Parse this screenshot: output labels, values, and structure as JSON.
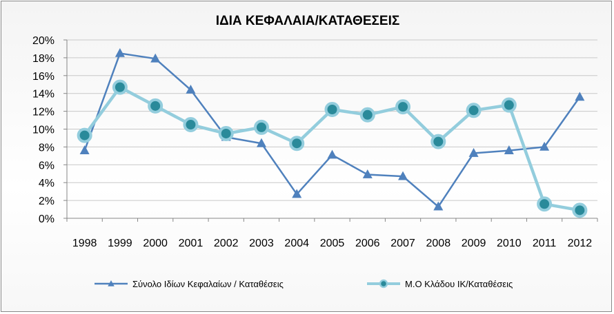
{
  "chart_data": {
    "type": "line",
    "title": "ΙΔΙΑ ΚΕΦΑΛΑΙΑ/ΚΑΤΑΘΕΣΕΙΣ",
    "categories": [
      "1998",
      "1999",
      "2000",
      "2001",
      "2002",
      "2003",
      "2004",
      "2005",
      "2006",
      "2007",
      "2008",
      "2009",
      "2010",
      "2011",
      "2012"
    ],
    "ylim": [
      0,
      20
    ],
    "yticks": [
      "0%",
      "2%",
      "4%",
      "6%",
      "8%",
      "10%",
      "12%",
      "14%",
      "16%",
      "18%",
      "20%"
    ],
    "grid": true,
    "legend_position": "bottom",
    "series": [
      {
        "name": "Σύνολο Ιδίων Κεφαλαίων / Καταθέσεις",
        "color": "#4f81bd",
        "marker": "triangle",
        "values": [
          7.6,
          18.5,
          17.9,
          14.4,
          9.1,
          8.4,
          2.7,
          7.1,
          4.9,
          4.7,
          1.3,
          7.3,
          7.6,
          8.0,
          13.6
        ]
      },
      {
        "name": "Μ.Ο Κλάδου ΙΚ/Καταθέσεις",
        "color": "#93cddd",
        "marker": "circle",
        "values": [
          9.3,
          14.7,
          12.6,
          10.5,
          9.5,
          10.2,
          8.4,
          12.2,
          11.6,
          12.5,
          8.6,
          12.1,
          12.7,
          1.6,
          0.9
        ]
      }
    ]
  }
}
